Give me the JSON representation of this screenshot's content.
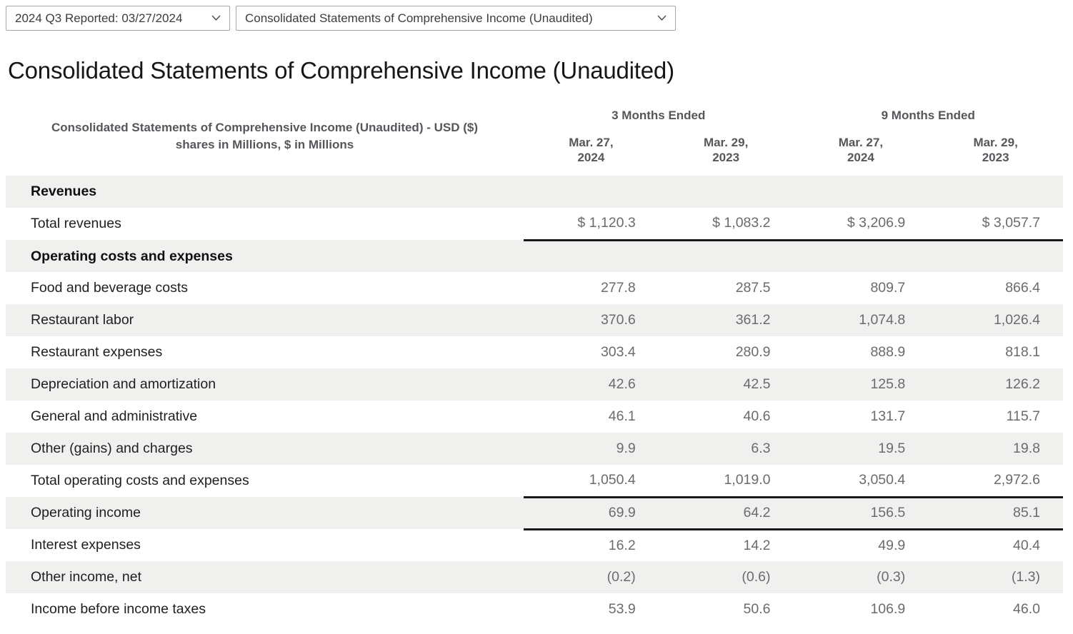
{
  "toolbar": {
    "period_select": {
      "value": "2024 Q3 Reported: 03/27/2024"
    },
    "statement_select": {
      "value": "Consolidated Statements of Comprehensive Income (Unaudited)"
    }
  },
  "icons": {
    "dropdown": "chevron-down"
  },
  "colors": {
    "row_stripe": "#f0f0ef",
    "total_rule": "#1a1a1a",
    "muted_text": "#56575b",
    "value_text": "#6b6b6b"
  },
  "page": {
    "title": "Consolidated Statements of Comprehensive Income (Unaudited)"
  },
  "table": {
    "header": {
      "title": "Consolidated Statements of Comprehensive Income (Unaudited) - USD ($)",
      "subtitle": "shares in Millions, $ in Millions",
      "groups": [
        {
          "label": "3 Months Ended",
          "span": 2
        },
        {
          "label": "9 Months Ended",
          "span": 2
        }
      ],
      "columns": [
        {
          "line1": "Mar. 27,",
          "line2": "2024"
        },
        {
          "line1": "Mar. 29,",
          "line2": "2023"
        },
        {
          "line1": "Mar. 27,",
          "line2": "2024"
        },
        {
          "line1": "Mar. 29,",
          "line2": "2023"
        }
      ]
    },
    "rows": [
      {
        "type": "section",
        "label": "Revenues"
      },
      {
        "type": "data",
        "label": "Total revenues",
        "values": [
          "$ 1,120.3",
          "$ 1,083.2",
          "$ 3,206.9",
          "$ 3,057.7"
        ],
        "underline": true
      },
      {
        "type": "section",
        "label": "Operating costs and expenses"
      },
      {
        "type": "data",
        "label": "Food and beverage costs",
        "values": [
          "277.8",
          "287.5",
          "809.7",
          "866.4"
        ]
      },
      {
        "type": "data",
        "label": "Restaurant labor",
        "values": [
          "370.6",
          "361.2",
          "1,074.8",
          "1,026.4"
        ]
      },
      {
        "type": "data",
        "label": "Restaurant expenses",
        "values": [
          "303.4",
          "280.9",
          "888.9",
          "818.1"
        ]
      },
      {
        "type": "data",
        "label": "Depreciation and amortization",
        "values": [
          "42.6",
          "42.5",
          "125.8",
          "126.2"
        ]
      },
      {
        "type": "data",
        "label": "General and administrative",
        "values": [
          "46.1",
          "40.6",
          "131.7",
          "115.7"
        ]
      },
      {
        "type": "data",
        "label": "Other (gains) and charges",
        "values": [
          "9.9",
          "6.3",
          "19.5",
          "19.8"
        ]
      },
      {
        "type": "data",
        "label": "Total operating costs and expenses",
        "values": [
          "1,050.4",
          "1,019.0",
          "3,050.4",
          "2,972.6"
        ],
        "underline": true
      },
      {
        "type": "data",
        "label": "Operating income",
        "values": [
          "69.9",
          "64.2",
          "156.5",
          "85.1"
        ],
        "underline": true
      },
      {
        "type": "data",
        "label": "Interest expenses",
        "values": [
          "16.2",
          "14.2",
          "49.9",
          "40.4"
        ]
      },
      {
        "type": "data",
        "label": "Other income, net",
        "values": [
          "(0.2)",
          "(0.6)",
          "(0.3)",
          "(1.3)"
        ]
      },
      {
        "type": "data",
        "label": "Income before income taxes",
        "values": [
          "53.9",
          "50.6",
          "106.9",
          "46.0"
        ]
      }
    ]
  }
}
